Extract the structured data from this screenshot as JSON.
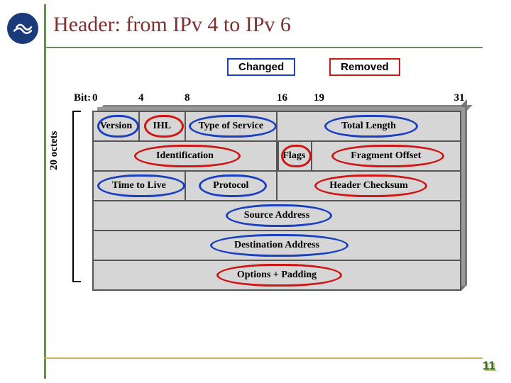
{
  "title": "Header: from IPv 4 to IPv 6",
  "legend": {
    "changed": {
      "label": "Changed",
      "color": "#1a3fbf"
    },
    "removed": {
      "label": "Removed",
      "color": "#d01515"
    }
  },
  "colors": {
    "title_rule": "#6b8a5a",
    "bottom_rule": "#c9b15a",
    "cell_bg": "#d6d6d6",
    "cell_border": "#555555",
    "shadow_top": "#888888",
    "shadow_right": "#777777",
    "title_text": "#803030",
    "logo_bg": "#1a3a7a"
  },
  "axis": {
    "bit_label": "Bit:",
    "bit_positions": [
      {
        "label": "0",
        "pct": 0
      },
      {
        "label": "4",
        "pct": 12.5
      },
      {
        "label": "8",
        "pct": 25
      },
      {
        "label": "16",
        "pct": 50
      },
      {
        "label": "19",
        "pct": 60
      },
      {
        "label": "31",
        "pct": 98
      }
    ],
    "octets_label": "20 octets"
  },
  "header_rows": [
    {
      "cells": [
        {
          "label": "Version",
          "bits": 4,
          "ring": "changed"
        },
        {
          "label": "IHL",
          "bits": 4,
          "ring": "removed"
        },
        {
          "label": "Type of Service",
          "bits": 8,
          "ring": "changed"
        },
        {
          "label": "Total Length",
          "bits": 16,
          "ring": "changed"
        }
      ]
    },
    {
      "cells": [
        {
          "label": "Identification",
          "bits": 16,
          "ring": "removed",
          "align": "center-left"
        },
        {
          "label": "Flags",
          "bits": 3,
          "ring": "removed"
        },
        {
          "label": "Fragment Offset",
          "bits": 13,
          "ring": "removed"
        }
      ]
    },
    {
      "cells": [
        {
          "label": "Time to Live",
          "bits": 8,
          "ring": "changed"
        },
        {
          "label": "Protocol",
          "bits": 8,
          "ring": "changed"
        },
        {
          "label": "Header Checksum",
          "bits": 16,
          "ring": "removed"
        }
      ]
    },
    {
      "cells": [
        {
          "label": "Source Address",
          "bits": 32,
          "ring": "changed"
        }
      ]
    },
    {
      "cells": [
        {
          "label": "Destination Address",
          "bits": 32,
          "ring": "changed"
        }
      ]
    },
    {
      "cells": [
        {
          "label": "Options + Padding",
          "bits": 32,
          "ring": "removed"
        }
      ]
    }
  ],
  "page_number": "11"
}
